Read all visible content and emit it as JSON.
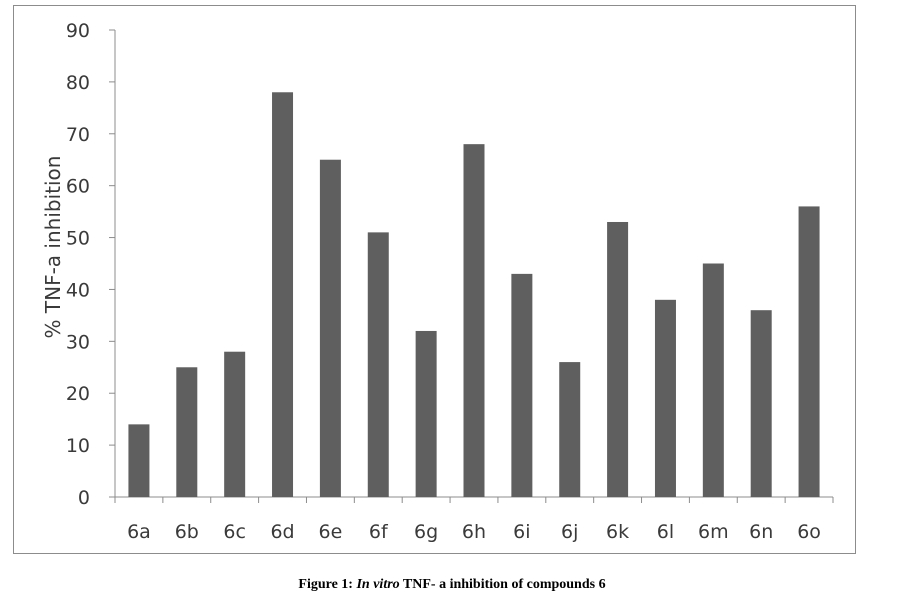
{
  "chart_data": {
    "type": "bar",
    "title": "",
    "xlabel": "",
    "ylabel": "% TNF-a inhibition",
    "ylim": [
      0,
      90
    ],
    "yticks": [
      0,
      10,
      20,
      30,
      40,
      50,
      60,
      70,
      80,
      90
    ],
    "categories": [
      "6a",
      "6b",
      "6c",
      "6d",
      "6e",
      "6f",
      "6g",
      "6h",
      "6i",
      "6j",
      "6k",
      "6l",
      "6m",
      "6n",
      "6o"
    ],
    "values": [
      14,
      25,
      28,
      78,
      65,
      51,
      32,
      68,
      43,
      26,
      53,
      38,
      45,
      36,
      56
    ],
    "bar_color": "#5f5f5f",
    "grid": false,
    "legend": "none"
  },
  "caption": {
    "prefix": "Figure 1: ",
    "italic": "In vitro",
    "suffix": " TNF- a inhibition of compounds 6"
  }
}
